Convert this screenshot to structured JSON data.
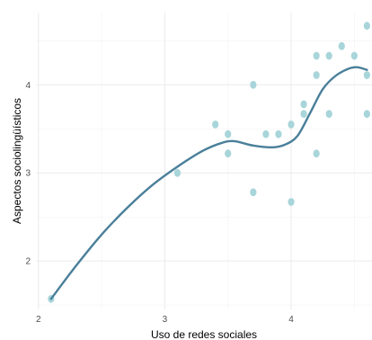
{
  "chart_data": {
    "type": "scatter",
    "xlabel": "Uso de redes sociales",
    "ylabel": "Aspectos sociolingüísticos",
    "xlim": [
      1.98,
      4.64
    ],
    "ylim": [
      1.45,
      4.82
    ],
    "grid": true,
    "x_major_ticks": [
      2,
      3,
      4
    ],
    "x_tick_labels": [
      "2",
      "3",
      "4"
    ],
    "y_major_ticks": [
      2,
      3,
      4
    ],
    "y_tick_labels": [
      "2",
      "3",
      "4"
    ],
    "point_color": "#a8d5da",
    "line_color": "#4a7f9a",
    "points": [
      {
        "x": 2.1,
        "y": 1.57
      },
      {
        "x": 3.1,
        "y": 3.0
      },
      {
        "x": 3.4,
        "y": 3.55
      },
      {
        "x": 3.5,
        "y": 3.44
      },
      {
        "x": 3.5,
        "y": 3.22
      },
      {
        "x": 3.7,
        "y": 4.0
      },
      {
        "x": 3.7,
        "y": 2.78
      },
      {
        "x": 3.8,
        "y": 3.44
      },
      {
        "x": 3.9,
        "y": 3.44
      },
      {
        "x": 4.0,
        "y": 3.55
      },
      {
        "x": 4.0,
        "y": 2.67
      },
      {
        "x": 4.1,
        "y": 3.78
      },
      {
        "x": 4.1,
        "y": 3.67
      },
      {
        "x": 4.2,
        "y": 4.33
      },
      {
        "x": 4.2,
        "y": 4.11
      },
      {
        "x": 4.2,
        "y": 3.22
      },
      {
        "x": 4.3,
        "y": 4.33
      },
      {
        "x": 4.3,
        "y": 3.67
      },
      {
        "x": 4.4,
        "y": 4.44
      },
      {
        "x": 4.5,
        "y": 4.33
      },
      {
        "x": 4.6,
        "y": 4.67
      },
      {
        "x": 4.6,
        "y": 4.11
      },
      {
        "x": 4.6,
        "y": 3.67
      }
    ],
    "smooth_line": [
      {
        "x": 2.1,
        "y": 1.57
      },
      {
        "x": 2.3,
        "y": 1.95
      },
      {
        "x": 2.5,
        "y": 2.3
      },
      {
        "x": 2.7,
        "y": 2.6
      },
      {
        "x": 2.9,
        "y": 2.86
      },
      {
        "x": 3.1,
        "y": 3.07
      },
      {
        "x": 3.3,
        "y": 3.25
      },
      {
        "x": 3.45,
        "y": 3.34
      },
      {
        "x": 3.55,
        "y": 3.36
      },
      {
        "x": 3.7,
        "y": 3.31
      },
      {
        "x": 3.85,
        "y": 3.29
      },
      {
        "x": 3.95,
        "y": 3.32
      },
      {
        "x": 4.05,
        "y": 3.42
      },
      {
        "x": 4.15,
        "y": 3.68
      },
      {
        "x": 4.25,
        "y": 3.95
      },
      {
        "x": 4.35,
        "y": 4.1
      },
      {
        "x": 4.45,
        "y": 4.18
      },
      {
        "x": 4.52,
        "y": 4.2
      },
      {
        "x": 4.6,
        "y": 4.17
      }
    ]
  }
}
